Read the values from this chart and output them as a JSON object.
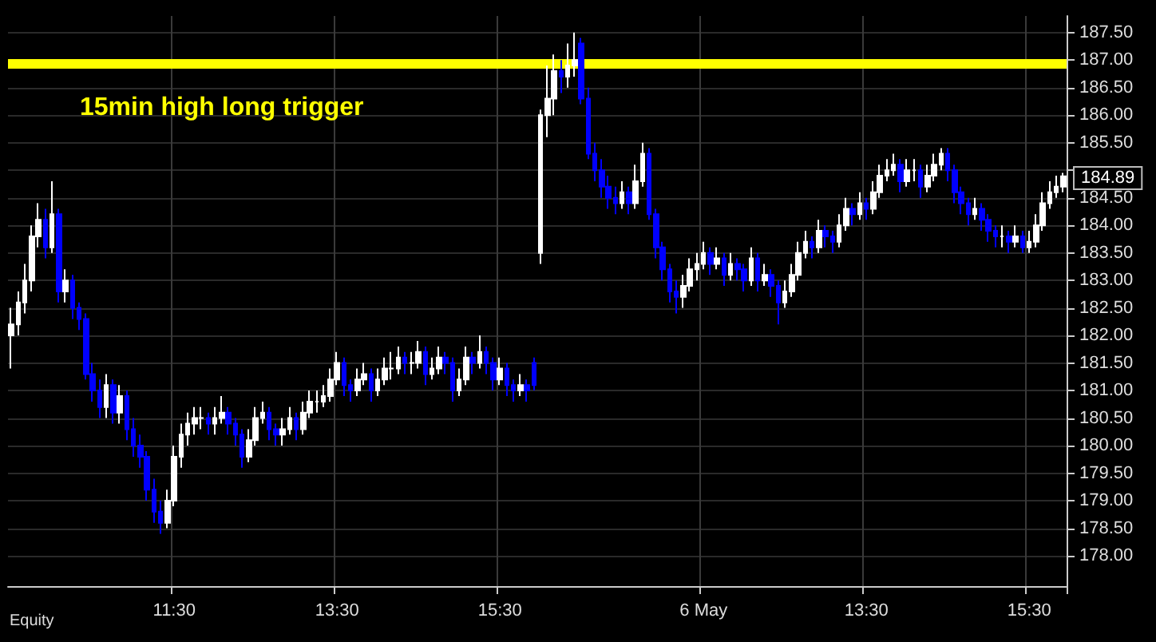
{
  "chart_data": {
    "type": "candlestick",
    "categories": [
      null,
      null,
      null,
      null,
      null,
      null,
      null,
      null,
      null,
      null,
      null,
      null,
      null,
      null,
      null,
      null,
      null,
      null,
      null,
      null,
      null,
      null,
      null,
      null,
      "11:30",
      null,
      null,
      null,
      null,
      null,
      null,
      null,
      null,
      null,
      null,
      null,
      null,
      null,
      null,
      null,
      null,
      null,
      null,
      null,
      null,
      null,
      null,
      null,
      "13:30",
      null,
      null,
      null,
      null,
      null,
      null,
      null,
      null,
      null,
      null,
      null,
      null,
      null,
      null,
      null,
      null,
      null,
      null,
      null,
      null,
      null,
      null,
      null,
      "15:30",
      null,
      null,
      null,
      null,
      null,
      null,
      null,
      null,
      null,
      null,
      null,
      null,
      null,
      null,
      null,
      null,
      null,
      null,
      null,
      null,
      null,
      null,
      null,
      null,
      null,
      null,
      null,
      null,
      null,
      "6 May",
      null,
      null,
      null,
      null,
      null,
      null,
      null,
      null,
      null,
      null,
      null,
      null,
      null,
      null,
      null,
      null,
      null,
      null,
      null,
      null,
      null,
      null,
      null,
      "13:30",
      null,
      null,
      null,
      null,
      null,
      null,
      null,
      null,
      null,
      null,
      null,
      null,
      null,
      null,
      null,
      null,
      null,
      null,
      null,
      null,
      null,
      null,
      null,
      "15:30",
      null,
      null,
      null,
      null,
      null
    ],
    "ohlc": [
      [
        182.0,
        182.5,
        181.4,
        182.2
      ],
      [
        182.2,
        182.8,
        182.0,
        182.6
      ],
      [
        182.6,
        183.3,
        182.4,
        183.0
      ],
      [
        183.0,
        184.0,
        182.8,
        183.8
      ],
      [
        183.8,
        184.4,
        183.6,
        184.1
      ],
      [
        184.1,
        184.3,
        183.4,
        183.6
      ],
      [
        183.6,
        184.8,
        183.5,
        184.2
      ],
      [
        184.2,
        184.3,
        182.6,
        182.8
      ],
      [
        182.8,
        183.2,
        182.6,
        183.0
      ],
      [
        183.0,
        183.1,
        182.3,
        182.5
      ],
      [
        182.5,
        182.6,
        182.1,
        182.3
      ],
      [
        182.3,
        182.4,
        181.2,
        181.3
      ],
      [
        181.3,
        181.5,
        180.8,
        181.0
      ],
      [
        181.0,
        181.2,
        180.5,
        180.7
      ],
      [
        180.7,
        181.3,
        180.5,
        181.1
      ],
      [
        181.1,
        181.2,
        180.4,
        180.6
      ],
      [
        180.6,
        181.1,
        180.4,
        180.9
      ],
      [
        180.9,
        181.0,
        180.1,
        180.3
      ],
      [
        180.3,
        180.5,
        179.8,
        180.0
      ],
      [
        180.0,
        180.2,
        179.6,
        179.8
      ],
      [
        179.8,
        179.9,
        179.0,
        179.2
      ],
      [
        179.2,
        179.4,
        178.6,
        178.8
      ],
      [
        178.8,
        179.0,
        178.4,
        178.6
      ],
      [
        178.6,
        179.2,
        178.5,
        179.0
      ],
      [
        179.0,
        180.0,
        178.9,
        179.8
      ],
      [
        179.8,
        180.4,
        179.6,
        180.2
      ],
      [
        180.2,
        180.6,
        180.0,
        180.4
      ],
      [
        180.4,
        180.7,
        180.2,
        180.5
      ],
      [
        180.5,
        180.7,
        180.3,
        180.5
      ],
      [
        180.5,
        180.6,
        180.2,
        180.4
      ],
      [
        180.4,
        180.7,
        180.2,
        180.5
      ],
      [
        180.5,
        180.9,
        180.4,
        180.6
      ],
      [
        180.6,
        180.7,
        180.2,
        180.4
      ],
      [
        180.4,
        180.5,
        180.0,
        180.2
      ],
      [
        180.2,
        180.3,
        179.6,
        179.8
      ],
      [
        179.8,
        180.3,
        179.7,
        180.1
      ],
      [
        180.1,
        180.7,
        180.0,
        180.5
      ],
      [
        180.5,
        180.8,
        180.4,
        180.6
      ],
      [
        180.6,
        180.7,
        180.1,
        180.3
      ],
      [
        180.3,
        180.4,
        180.0,
        180.2
      ],
      [
        180.2,
        180.5,
        180.0,
        180.3
      ],
      [
        180.3,
        180.7,
        180.2,
        180.5
      ],
      [
        180.5,
        180.6,
        180.1,
        180.3
      ],
      [
        180.3,
        180.8,
        180.2,
        180.6
      ],
      [
        180.6,
        181.0,
        180.5,
        180.8
      ],
      [
        180.8,
        181.0,
        180.6,
        180.8
      ],
      [
        180.8,
        181.1,
        180.7,
        180.9
      ],
      [
        180.9,
        181.4,
        180.8,
        181.2
      ],
      [
        181.2,
        181.7,
        181.1,
        181.5
      ],
      [
        181.5,
        181.6,
        180.9,
        181.1
      ],
      [
        181.1,
        181.2,
        180.8,
        181.0
      ],
      [
        181.0,
        181.4,
        180.9,
        181.2
      ],
      [
        181.2,
        181.5,
        181.1,
        181.3
      ],
      [
        181.3,
        181.4,
        180.8,
        181.0
      ],
      [
        181.0,
        181.4,
        180.9,
        181.2
      ],
      [
        181.2,
        181.6,
        181.1,
        181.4
      ],
      [
        181.4,
        181.7,
        181.2,
        181.4
      ],
      [
        181.4,
        181.8,
        181.3,
        181.6
      ],
      [
        181.6,
        181.7,
        181.3,
        181.5
      ],
      [
        181.5,
        181.7,
        181.3,
        181.5
      ],
      [
        181.5,
        181.9,
        181.4,
        181.7
      ],
      [
        181.7,
        181.8,
        181.1,
        181.3
      ],
      [
        181.3,
        181.6,
        181.2,
        181.4
      ],
      [
        181.4,
        181.8,
        181.3,
        181.6
      ],
      [
        181.6,
        181.7,
        181.3,
        181.5
      ],
      [
        181.5,
        181.6,
        180.8,
        181.0
      ],
      [
        181.0,
        181.4,
        180.9,
        181.2
      ],
      [
        181.2,
        181.8,
        181.1,
        181.6
      ],
      [
        181.6,
        181.7,
        181.3,
        181.5
      ],
      [
        181.5,
        182.0,
        181.4,
        181.7
      ],
      [
        181.7,
        181.8,
        181.3,
        181.5
      ],
      [
        181.5,
        181.6,
        181.0,
        181.2
      ],
      [
        181.2,
        181.6,
        181.1,
        181.4
      ],
      [
        181.4,
        181.5,
        180.9,
        181.1
      ],
      [
        181.1,
        181.2,
        180.8,
        181.0
      ],
      [
        181.0,
        181.3,
        180.9,
        181.1
      ],
      [
        181.1,
        181.2,
        180.8,
        181.0
      ],
      [
        181.5,
        181.6,
        181.0,
        181.1
      ],
      [
        183.5,
        186.1,
        183.3,
        186.0
      ],
      [
        186.0,
        186.9,
        185.6,
        186.3
      ],
      [
        186.3,
        187.1,
        186.0,
        186.8
      ],
      [
        186.8,
        187.0,
        186.4,
        186.7
      ],
      [
        186.7,
        187.3,
        186.5,
        186.9
      ],
      [
        186.9,
        187.5,
        186.7,
        187.0
      ],
      [
        187.3,
        187.4,
        186.2,
        186.3
      ],
      [
        186.3,
        186.5,
        185.2,
        185.3
      ],
      [
        185.3,
        185.5,
        184.8,
        185.0
      ],
      [
        185.0,
        185.2,
        184.5,
        184.7
      ],
      [
        184.7,
        184.9,
        184.3,
        184.5
      ],
      [
        184.5,
        184.7,
        184.2,
        184.4
      ],
      [
        184.4,
        184.8,
        184.3,
        184.6
      ],
      [
        184.6,
        184.7,
        184.2,
        184.4
      ],
      [
        184.4,
        185.1,
        184.3,
        184.8
      ],
      [
        184.8,
        185.5,
        184.7,
        185.3
      ],
      [
        185.3,
        185.4,
        184.1,
        184.2
      ],
      [
        184.2,
        184.3,
        183.4,
        183.6
      ],
      [
        183.6,
        183.7,
        183.0,
        183.2
      ],
      [
        183.2,
        183.3,
        182.6,
        182.8
      ],
      [
        182.8,
        183.0,
        182.4,
        182.7
      ],
      [
        182.7,
        183.1,
        182.5,
        182.9
      ],
      [
        182.9,
        183.4,
        182.8,
        183.2
      ],
      [
        183.2,
        183.5,
        183.0,
        183.3
      ],
      [
        183.3,
        183.7,
        183.2,
        183.5
      ],
      [
        183.5,
        183.6,
        183.1,
        183.3
      ],
      [
        183.3,
        183.6,
        183.2,
        183.4
      ],
      [
        183.4,
        183.5,
        182.9,
        183.1
      ],
      [
        183.1,
        183.5,
        183.0,
        183.3
      ],
      [
        183.3,
        183.4,
        183.0,
        183.2
      ],
      [
        183.2,
        183.3,
        182.8,
        183.0
      ],
      [
        183.0,
        183.6,
        182.9,
        183.4
      ],
      [
        183.4,
        183.5,
        182.8,
        183.0
      ],
      [
        183.0,
        183.3,
        182.9,
        183.1
      ],
      [
        183.1,
        183.2,
        182.7,
        182.9
      ],
      [
        182.9,
        183.0,
        182.2,
        182.6
      ],
      [
        182.6,
        183.0,
        182.5,
        182.8
      ],
      [
        182.8,
        183.3,
        182.7,
        183.1
      ],
      [
        183.1,
        183.7,
        183.0,
        183.5
      ],
      [
        183.5,
        183.9,
        183.4,
        183.7
      ],
      [
        183.7,
        183.8,
        183.4,
        183.6
      ],
      [
        183.6,
        184.1,
        183.5,
        183.9
      ],
      [
        183.9,
        184.0,
        183.6,
        183.8
      ],
      [
        183.8,
        183.9,
        183.5,
        183.7
      ],
      [
        183.7,
        184.2,
        183.6,
        184.0
      ],
      [
        184.0,
        184.5,
        183.9,
        184.3
      ],
      [
        184.3,
        184.4,
        184.0,
        184.2
      ],
      [
        184.2,
        184.6,
        184.1,
        184.4
      ],
      [
        184.4,
        184.5,
        184.1,
        184.3
      ],
      [
        184.3,
        184.8,
        184.2,
        184.6
      ],
      [
        184.6,
        185.1,
        184.5,
        184.9
      ],
      [
        184.9,
        185.2,
        184.8,
        185.0
      ],
      [
        185.0,
        185.3,
        184.9,
        185.1
      ],
      [
        185.1,
        185.2,
        184.6,
        184.8
      ],
      [
        184.8,
        185.2,
        184.7,
        185.0
      ],
      [
        185.0,
        185.2,
        184.8,
        185.0
      ],
      [
        185.0,
        185.1,
        184.5,
        184.7
      ],
      [
        184.7,
        185.1,
        184.6,
        184.9
      ],
      [
        184.9,
        185.3,
        184.8,
        185.1
      ],
      [
        185.1,
        185.4,
        185.0,
        185.3
      ],
      [
        185.3,
        185.4,
        184.8,
        185.0
      ],
      [
        185.0,
        185.1,
        184.4,
        184.6
      ],
      [
        184.6,
        184.7,
        184.2,
        184.4
      ],
      [
        184.4,
        184.5,
        184.0,
        184.2
      ],
      [
        184.2,
        184.5,
        184.1,
        184.3
      ],
      [
        184.3,
        184.4,
        183.9,
        184.1
      ],
      [
        184.1,
        184.2,
        183.7,
        183.9
      ],
      [
        183.9,
        184.0,
        183.6,
        183.8
      ],
      [
        183.8,
        184.0,
        183.6,
        183.8
      ],
      [
        183.8,
        183.9,
        183.5,
        183.7
      ],
      [
        183.7,
        184.0,
        183.6,
        183.8
      ],
      [
        183.8,
        183.9,
        183.5,
        183.6
      ],
      [
        183.6,
        183.9,
        183.5,
        183.7
      ],
      [
        183.7,
        184.2,
        183.6,
        184.0
      ],
      [
        184.0,
        184.6,
        183.9,
        184.4
      ],
      [
        184.4,
        184.8,
        184.3,
        184.6
      ],
      [
        184.6,
        184.9,
        184.5,
        184.7
      ],
      [
        184.7,
        184.95,
        184.6,
        184.89
      ]
    ],
    "colors": [
      "#ffffff",
      "#ffffff",
      "#ffffff",
      "#ffffff",
      "#ffffff",
      "#0000ff",
      "#ffffff",
      "#0000ff",
      "#ffffff",
      "#0000ff",
      "#0000ff",
      "#0000ff",
      "#0000ff",
      "#0000ff",
      "#ffffff",
      "#0000ff",
      "#ffffff",
      "#0000ff",
      "#0000ff",
      "#0000ff",
      "#0000ff",
      "#0000ff",
      "#0000ff",
      "#ffffff",
      "#ffffff",
      "#ffffff",
      "#ffffff",
      "#ffffff",
      "#ffffff",
      "#0000ff",
      "#ffffff",
      "#ffffff",
      "#0000ff",
      "#0000ff",
      "#0000ff",
      "#ffffff",
      "#ffffff",
      "#ffffff",
      "#0000ff",
      "#0000ff",
      "#ffffff",
      "#ffffff",
      "#0000ff",
      "#ffffff",
      "#ffffff",
      "#ffffff",
      "#ffffff",
      "#ffffff",
      "#ffffff",
      "#0000ff",
      "#0000ff",
      "#ffffff",
      "#ffffff",
      "#0000ff",
      "#ffffff",
      "#ffffff",
      "#ffffff",
      "#ffffff",
      "#0000ff",
      "#ffffff",
      "#ffffff",
      "#0000ff",
      "#ffffff",
      "#ffffff",
      "#0000ff",
      "#0000ff",
      "#ffffff",
      "#ffffff",
      "#0000ff",
      "#ffffff",
      "#0000ff",
      "#0000ff",
      "#ffffff",
      "#0000ff",
      "#0000ff",
      "#ffffff",
      "#0000ff",
      "#0000ff",
      "#ffffff",
      "#ffffff",
      "#ffffff",
      "#0000ff",
      "#ffffff",
      "#ffffff",
      "#0000ff",
      "#0000ff",
      "#0000ff",
      "#0000ff",
      "#0000ff",
      "#0000ff",
      "#ffffff",
      "#0000ff",
      "#ffffff",
      "#ffffff",
      "#0000ff",
      "#0000ff",
      "#0000ff",
      "#0000ff",
      "#0000ff",
      "#ffffff",
      "#ffffff",
      "#ffffff",
      "#ffffff",
      "#0000ff",
      "#ffffff",
      "#0000ff",
      "#ffffff",
      "#0000ff",
      "#0000ff",
      "#ffffff",
      "#0000ff",
      "#ffffff",
      "#0000ff",
      "#0000ff",
      "#ffffff",
      "#ffffff",
      "#ffffff",
      "#ffffff",
      "#0000ff",
      "#ffffff",
      "#0000ff",
      "#0000ff",
      "#ffffff",
      "#ffffff",
      "#0000ff",
      "#ffffff",
      "#0000ff",
      "#ffffff",
      "#ffffff",
      "#ffffff",
      "#ffffff",
      "#0000ff",
      "#ffffff",
      "#ffffff",
      "#0000ff",
      "#ffffff",
      "#ffffff",
      "#ffffff",
      "#0000ff",
      "#0000ff",
      "#0000ff",
      "#0000ff",
      "#ffffff",
      "#0000ff",
      "#0000ff",
      "#0000ff",
      "#ffffff",
      "#0000ff",
      "#ffffff",
      "#0000ff",
      "#ffffff",
      "#ffffff",
      "#ffffff",
      "#ffffff",
      "#ffffff",
      "#ffffff"
    ],
    "ylim": [
      177.45,
      187.8
    ],
    "yticks": [
      {
        "value": 178,
        "label": "178.00"
      },
      {
        "value": 178.5,
        "label": "178.50"
      },
      {
        "value": 179,
        "label": "179.00"
      },
      {
        "value": 179.5,
        "label": "179.50"
      },
      {
        "value": 180,
        "label": "180.00"
      },
      {
        "value": 180.5,
        "label": "180.50"
      },
      {
        "value": 181,
        "label": "181.00"
      },
      {
        "value": 181.5,
        "label": "181.50"
      },
      {
        "value": 182,
        "label": "182.00"
      },
      {
        "value": 182.5,
        "label": "182.50"
      },
      {
        "value": 183,
        "label": "183.00"
      },
      {
        "value": 183.5,
        "label": "183.50"
      },
      {
        "value": 184,
        "label": "184.00"
      },
      {
        "value": 184.5,
        "label": "184.50"
      },
      {
        "value": 185,
        "label": null
      },
      {
        "value": 185.5,
        "label": "185.50"
      },
      {
        "value": 186,
        "label": "186.00"
      },
      {
        "value": 186.5,
        "label": "186.50"
      },
      {
        "value": 187,
        "label": "187.00"
      },
      {
        "value": 187.5,
        "label": "187.50"
      }
    ],
    "grid": true,
    "ref_lines": [
      {
        "axis": "y",
        "value": 186.95,
        "label": "15min high long trigger",
        "color": "#ffff00"
      }
    ],
    "annotations": [
      "184.89",
      "Equity"
    ]
  }
}
